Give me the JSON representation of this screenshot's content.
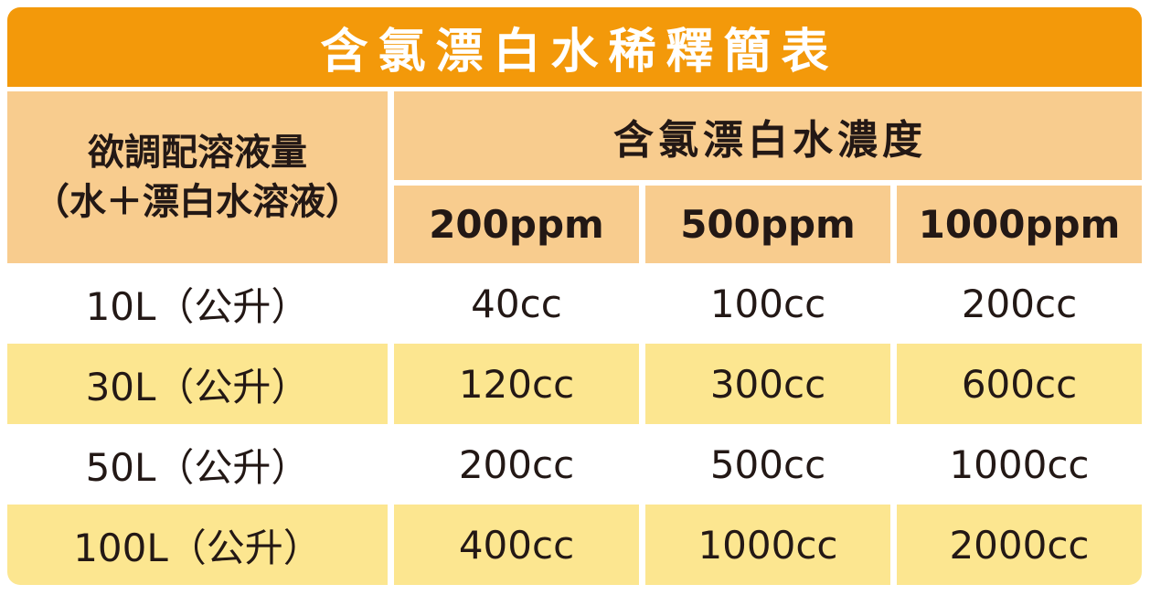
{
  "title": "含氯漂白水稀釋簡表",
  "header": {
    "row_group_line1": "欲調配溶液量",
    "row_group_line2": "（水＋漂白水溶液）",
    "concentration": "含氯漂白水濃度"
  },
  "columns": [
    "200ppm",
    "500ppm",
    "1000ppm"
  ],
  "rows": [
    {
      "label": "10L（公升）",
      "values": [
        "40cc",
        "100cc",
        "200cc"
      ]
    },
    {
      "label": "30L（公升）",
      "values": [
        "120cc",
        "300cc",
        "600cc"
      ]
    },
    {
      "label": "50L（公升）",
      "values": [
        "200cc",
        "500cc",
        "1000cc"
      ]
    },
    {
      "label": "100L（公升）",
      "values": [
        "400cc",
        "1000cc",
        "2000cc"
      ]
    }
  ],
  "colors": {
    "title_bar": "#F3990A",
    "header_bg": "#F8CC8E",
    "stripe_bg": "#FCE690",
    "text_dark": "#231815",
    "title_text": "#FFFFFF"
  },
  "chart_data": {
    "type": "table",
    "title": "含氯漂白水稀釋簡表",
    "row_group_header": "欲調配溶液量（水＋漂白水溶液）",
    "column_group_header": "含氯漂白水濃度",
    "columns": [
      "200ppm",
      "500ppm",
      "1000ppm"
    ],
    "rows": [
      [
        "10L（公升）",
        "40cc",
        "100cc",
        "200cc"
      ],
      [
        "30L（公升）",
        "120cc",
        "300cc",
        "600cc"
      ],
      [
        "50L（公升）",
        "200cc",
        "500cc",
        "1000cc"
      ],
      [
        "100L（公升）",
        "400cc",
        "1000cc",
        "2000cc"
      ]
    ],
    "layout": {
      "striped_rows": [
        1,
        3
      ],
      "stripe_color": "#FCE690",
      "header_color": "#F8CC8E",
      "title_color": "#F3990A"
    }
  }
}
